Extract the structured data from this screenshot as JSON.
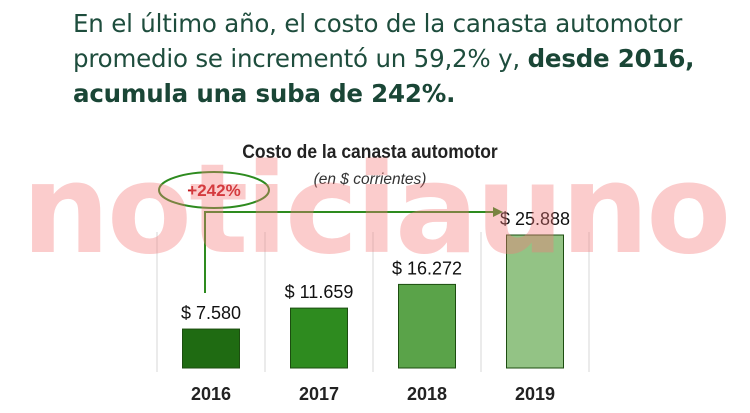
{
  "headline": {
    "normal": "En el último año, el costo de la canasta automotor promedio se incrementó un 59,2% y, ",
    "bold": "desde 2016, acumula una suba de 242%."
  },
  "watermark": "noticiauno",
  "chart_data": {
    "type": "bar",
    "title": "Costo de la canasta automotor",
    "subtitle": "(en $ corrientes)",
    "categories": [
      "2016",
      "2017",
      "2018",
      "2019"
    ],
    "values": [
      7580,
      11659,
      16272,
      25888
    ],
    "value_labels": [
      "$ 7.580",
      "$ 11.659",
      "$ 16.272",
      "$ 25.888"
    ],
    "bar_colors": [
      "#1f6b12",
      "#2e8b1f",
      "#5aa349",
      "#93c385"
    ],
    "grid": false,
    "annotation": {
      "text": "+242%",
      "from": "2016",
      "to": "2019",
      "color": "#c0141a",
      "arrow_color": "#2e8b1f"
    }
  },
  "colors": {
    "headline": "#1e4d3d",
    "watermark": "#f57878"
  }
}
